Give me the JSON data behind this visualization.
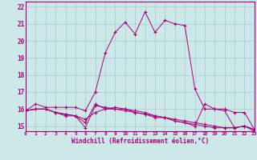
{
  "xlabel": "Windchill (Refroidissement éolien,°C)",
  "bg_color": "#cce8e8",
  "grid_color": "#aacccc",
  "line_color": "#aa0077",
  "spine_color": "#aa0077",
  "xmin": 0,
  "xmax": 23,
  "ymin": 14.7,
  "ymax": 22.3,
  "yticks": [
    15,
    16,
    17,
    18,
    19,
    20,
    21,
    22
  ],
  "xticks": [
    0,
    1,
    2,
    3,
    4,
    5,
    6,
    7,
    8,
    9,
    10,
    11,
    12,
    13,
    14,
    15,
    16,
    17,
    18,
    19,
    20,
    21,
    22,
    23
  ],
  "series": [
    {
      "x": [
        0,
        1,
        2,
        3,
        4,
        5,
        6,
        7,
        8,
        9,
        10,
        11,
        12,
        13,
        14,
        15,
        16,
        17,
        18,
        19,
        20,
        21,
        22,
        23
      ],
      "y": [
        15.9,
        16.3,
        16.1,
        16.1,
        16.1,
        16.1,
        15.9,
        17.0,
        19.3,
        20.5,
        21.1,
        20.4,
        21.7,
        20.5,
        21.2,
        21.0,
        20.9,
        17.2,
        16.0,
        16.0,
        16.0,
        15.8,
        15.8,
        14.8
      ]
    },
    {
      "x": [
        0,
        1,
        2,
        3,
        4,
        5,
        6,
        7,
        8,
        9,
        10,
        11,
        12,
        13,
        14,
        15,
        16,
        17,
        18,
        19,
        20,
        21,
        22,
        23
      ],
      "y": [
        15.9,
        16.0,
        16.0,
        15.8,
        15.7,
        15.6,
        14.9,
        16.2,
        16.1,
        16.0,
        15.9,
        15.8,
        15.7,
        15.6,
        15.5,
        15.4,
        15.3,
        15.2,
        15.1,
        15.0,
        14.9,
        14.9,
        15.0,
        14.8
      ]
    },
    {
      "x": [
        0,
        1,
        2,
        3,
        4,
        5,
        6,
        7,
        8,
        9,
        10,
        11,
        12,
        13,
        14,
        15,
        16,
        17,
        18,
        19,
        20,
        21,
        22,
        23
      ],
      "y": [
        15.9,
        16.0,
        16.0,
        15.8,
        15.6,
        15.6,
        15.4,
        15.8,
        16.0,
        16.1,
        16.0,
        15.9,
        15.8,
        15.6,
        15.5,
        15.3,
        15.2,
        15.1,
        15.0,
        14.9,
        14.9,
        14.9,
        15.0,
        14.8
      ]
    },
    {
      "x": [
        0,
        1,
        2,
        3,
        4,
        5,
        6,
        7,
        8,
        9,
        10,
        11,
        12,
        13,
        14,
        15,
        16,
        17,
        18,
        19,
        20,
        21,
        22,
        23
      ],
      "y": [
        15.9,
        16.0,
        16.0,
        15.8,
        15.7,
        15.6,
        15.2,
        16.3,
        16.0,
        16.0,
        16.0,
        15.8,
        15.7,
        15.5,
        15.5,
        15.3,
        15.2,
        15.0,
        16.3,
        16.0,
        15.9,
        14.9,
        15.0,
        14.7
      ]
    }
  ]
}
